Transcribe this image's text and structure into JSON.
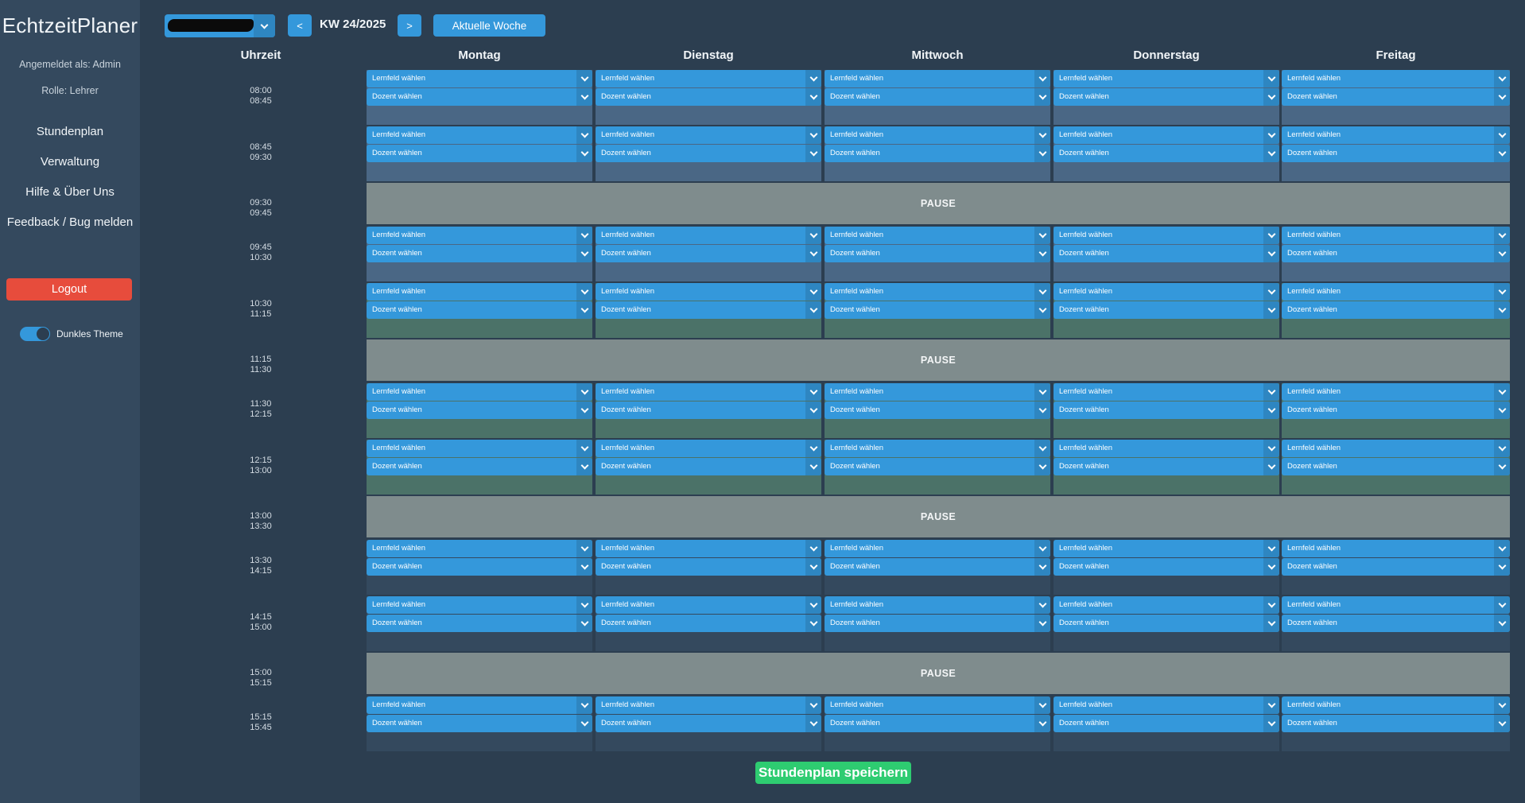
{
  "sidebar": {
    "brand": "EchtzeitPlaner",
    "logged_in": "Angemeldet als: Admin",
    "role": "Rolle: Lehrer",
    "nav": [
      "Stundenplan",
      "Verwaltung",
      "Hilfe & Über Uns",
      "Feedback / Bug melden"
    ],
    "logout": "Logout",
    "theme_label": "Dunkles Theme",
    "theme_dark_on": true
  },
  "toolbar": {
    "prev": "<",
    "next": ">",
    "week": "KW 24/2025",
    "current_week": "Aktuelle Woche",
    "class_select_redacted": true
  },
  "header": {
    "time_col": "Uhrzeit",
    "days": [
      "Montag",
      "Dienstag",
      "Mittwoch",
      "Donnerstag",
      "Freitag"
    ]
  },
  "placeholders": {
    "lernfeld": "Lernfeld wählen",
    "dozent": "Dozent wählen"
  },
  "pause_label": "PAUSE",
  "slots": [
    {
      "start": "08:00",
      "end": "08:45",
      "kind": "lesson",
      "tone": "blue"
    },
    {
      "start": "08:45",
      "end": "09:30",
      "kind": "lesson",
      "tone": "blue"
    },
    {
      "start": "09:30",
      "end": "09:45",
      "kind": "pause"
    },
    {
      "start": "09:45",
      "end": "10:30",
      "kind": "lesson",
      "tone": "blue"
    },
    {
      "start": "10:30",
      "end": "11:15",
      "kind": "lesson",
      "tone": "green"
    },
    {
      "start": "11:15",
      "end": "11:30",
      "kind": "pause"
    },
    {
      "start": "11:30",
      "end": "12:15",
      "kind": "lesson",
      "tone": "green"
    },
    {
      "start": "12:15",
      "end": "13:00",
      "kind": "lesson",
      "tone": "green"
    },
    {
      "start": "13:00",
      "end": "13:30",
      "kind": "pause"
    },
    {
      "start": "13:30",
      "end": "14:15",
      "kind": "lesson",
      "tone": "dark"
    },
    {
      "start": "14:15",
      "end": "15:00",
      "kind": "lesson",
      "tone": "dark"
    },
    {
      "start": "15:00",
      "end": "15:15",
      "kind": "pause"
    },
    {
      "start": "15:15",
      "end": "15:45",
      "kind": "lesson",
      "tone": "dark"
    }
  ],
  "save_button": "Stundenplan speichern",
  "colors": {
    "background": "#2c3e50",
    "sidebar": "#34495e",
    "accent": "#3498db",
    "logout": "#e74c3c",
    "save": "#2ecc71",
    "pause": "#7f8c8d"
  }
}
